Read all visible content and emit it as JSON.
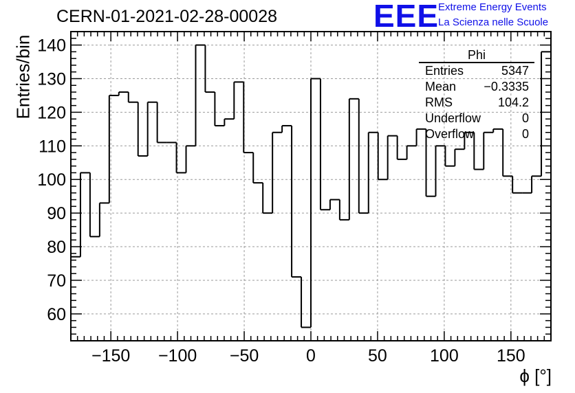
{
  "title": "CERN-01-2021-02-28-00028",
  "logo": {
    "mark": "EEE",
    "line1": "Extreme Energy Events",
    "line2": "La Scienza nelle Scuole",
    "color": "#1010e8"
  },
  "stats_box": {
    "name": "Phi",
    "rows": [
      {
        "key": "Entries",
        "value": "5347"
      },
      {
        "key": "Mean",
        "value": "−0.3335"
      },
      {
        "key": "RMS",
        "value": "104.2"
      },
      {
        "key": "Underflow",
        "value": "0"
      },
      {
        "key": "Overflow",
        "value": "0"
      }
    ]
  },
  "chart_data": {
    "type": "histogram",
    "xlabel": "ϕ [°]",
    "ylabel": "Entries/bin",
    "xlim": [
      -180,
      180
    ],
    "ylim": [
      52,
      144
    ],
    "bin_width": 7.2,
    "x_ticks": [
      -150,
      -100,
      -50,
      0,
      50,
      100,
      150
    ],
    "x_tick_labels": [
      "−150",
      "−100",
      "−50",
      "0",
      "50",
      "100",
      "150"
    ],
    "y_ticks": [
      60,
      70,
      80,
      90,
      100,
      110,
      120,
      130,
      140
    ],
    "grid": true,
    "values": [
      77,
      102,
      83,
      93,
      125,
      126,
      123,
      107,
      123,
      111,
      111,
      102,
      110,
      140,
      126,
      116,
      118,
      129,
      108,
      99,
      90,
      114,
      116,
      71,
      56,
      130,
      91,
      94,
      88,
      124,
      90,
      114,
      100,
      113,
      106,
      110,
      115,
      95,
      110,
      104,
      109,
      114,
      103,
      114,
      115,
      101,
      96,
      96,
      101,
      138
    ]
  }
}
